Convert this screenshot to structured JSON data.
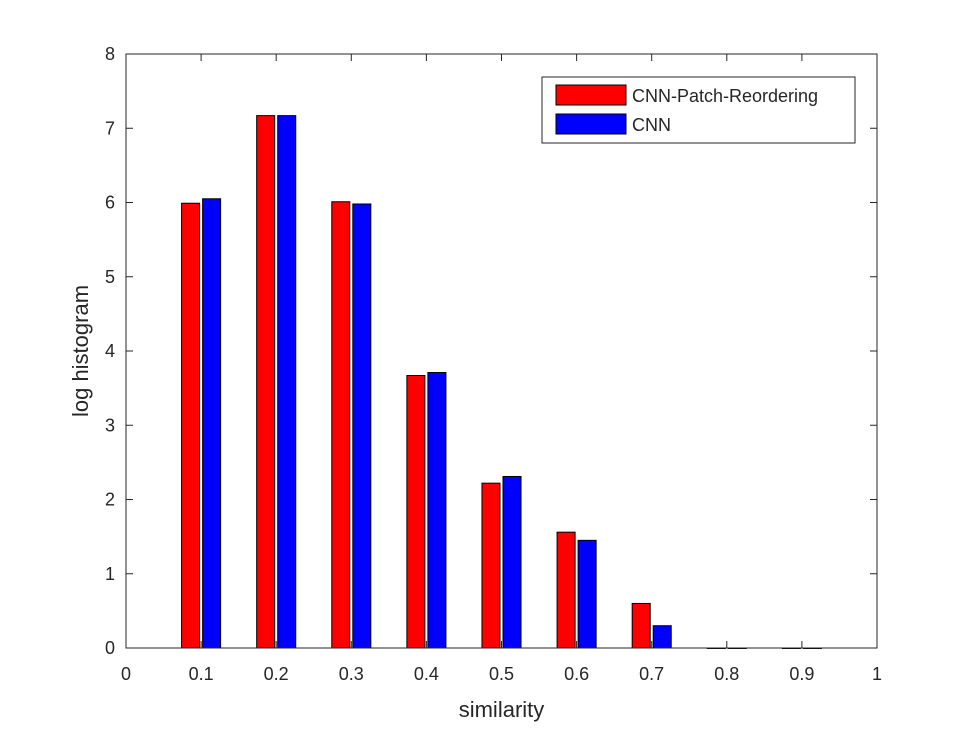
{
  "chart_data": {
    "type": "bar",
    "title": "",
    "xlabel": "similarity",
    "ylabel": "log histogram",
    "xlim": [
      0,
      1
    ],
    "ylim": [
      0,
      8
    ],
    "x_ticks": [
      "0",
      "0.1",
      "0.2",
      "0.3",
      "0.4",
      "0.5",
      "0.6",
      "0.7",
      "0.8",
      "0.9",
      "1"
    ],
    "y_ticks": [
      "0",
      "1",
      "2",
      "3",
      "4",
      "5",
      "6",
      "7",
      "8"
    ],
    "x": [
      0.1,
      0.2,
      0.3,
      0.4,
      0.5,
      0.6,
      0.7,
      0.8,
      0.9
    ],
    "series": [
      {
        "name": "CNN-Patch-Reordering",
        "color": "#ff0000",
        "values": [
          5.99,
          7.17,
          6.01,
          3.67,
          2.22,
          1.56,
          0.6,
          0,
          0
        ]
      },
      {
        "name": "CNN",
        "color": "#0000ff",
        "values": [
          6.05,
          7.17,
          5.98,
          3.71,
          2.31,
          1.45,
          0.3,
          0,
          0
        ]
      }
    ],
    "grid": false,
    "legend_position": "top-right"
  }
}
